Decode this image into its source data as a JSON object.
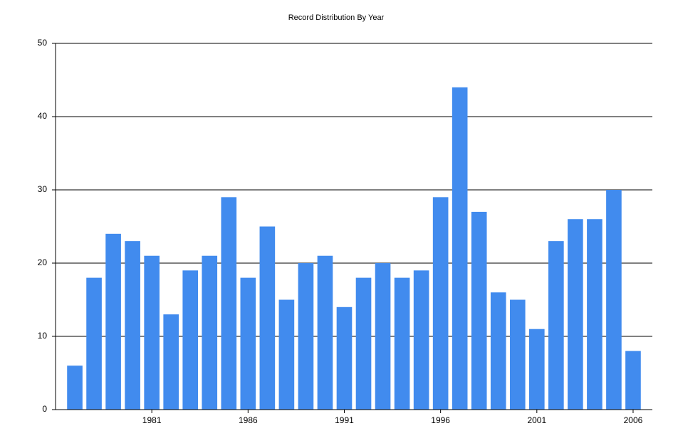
{
  "chart_data": {
    "type": "bar",
    "title": "Record Distribution By Year",
    "x": [
      1977,
      1978,
      1979,
      1980,
      1981,
      1982,
      1983,
      1984,
      1985,
      1986,
      1987,
      1988,
      1989,
      1990,
      1991,
      1992,
      1993,
      1994,
      1995,
      1996,
      1997,
      1998,
      1999,
      2000,
      2001,
      2002,
      2003,
      2004,
      2005,
      2006
    ],
    "values": [
      6,
      18,
      24,
      23,
      21,
      13,
      19,
      21,
      29,
      18,
      25,
      15,
      20,
      21,
      14,
      18,
      20,
      18,
      19,
      29,
      44,
      27,
      16,
      15,
      11,
      23,
      26,
      26,
      30,
      8
    ],
    "color": "#418bee",
    "xlim": [
      1976,
      2007
    ],
    "xticks": [
      1981,
      1986,
      1991,
      1996,
      2001,
      2006
    ],
    "ylim": [
      0,
      50
    ],
    "yticks": [
      0,
      10,
      20,
      30,
      40,
      50
    ],
    "grid": true
  }
}
